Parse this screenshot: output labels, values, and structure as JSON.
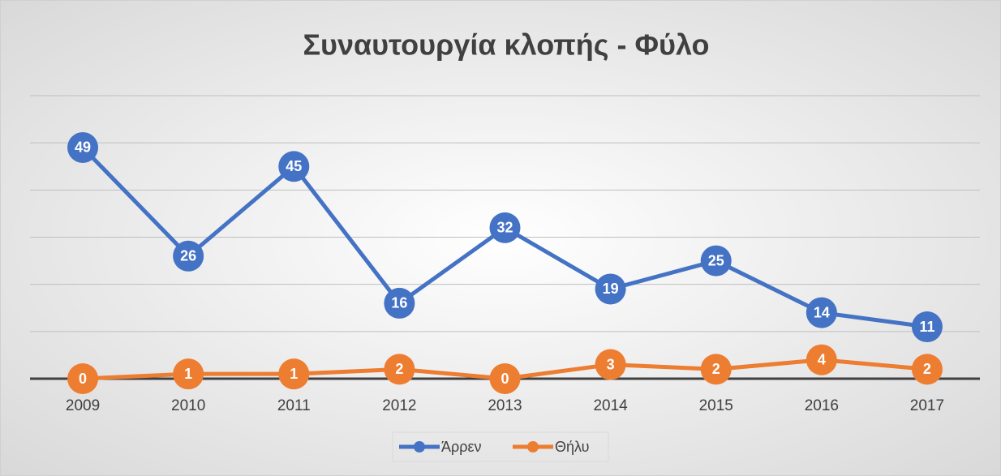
{
  "chart_data": {
    "type": "line",
    "title": "Συναυτουργία κλοπής - Φύλο",
    "categories": [
      "2009",
      "2010",
      "2011",
      "2012",
      "2013",
      "2014",
      "2015",
      "2016",
      "2017"
    ],
    "series": [
      {
        "name": "Άρρεν",
        "color": "#4472c4",
        "values": [
          49,
          26,
          45,
          16,
          32,
          19,
          25,
          14,
          11
        ]
      },
      {
        "name": "Θήλυ",
        "color": "#ed7d31",
        "values": [
          0,
          1,
          1,
          2,
          0,
          3,
          2,
          4,
          2
        ]
      }
    ],
    "ylim": [
      0,
      60
    ],
    "yticks": [
      0,
      10,
      20,
      30,
      40,
      50,
      60
    ],
    "grid": true,
    "legend": "bottom"
  }
}
